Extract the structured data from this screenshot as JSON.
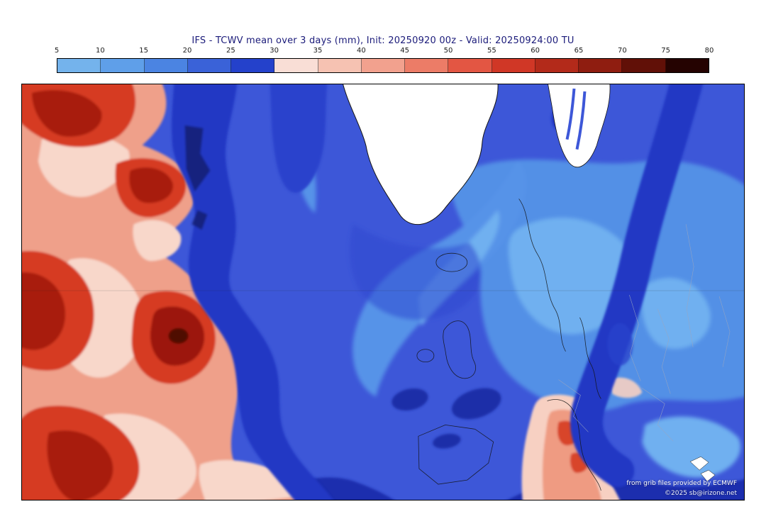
{
  "page": {
    "title": "IFS - TCWV mean over 3 days (mm), Init: 20250920 00z - Valid: 20250924:00 TU"
  },
  "colorbar": {
    "ticks": [
      "5",
      "10",
      "15",
      "20",
      "25",
      "30",
      "35",
      "40",
      "45",
      "50",
      "55",
      "60",
      "65",
      "70",
      "75",
      "80"
    ],
    "segments": [
      {
        "from": 5,
        "to": 10,
        "color": "#74b3ec"
      },
      {
        "from": 10,
        "to": 15,
        "color": "#5f9fe9"
      },
      {
        "from": 15,
        "to": 20,
        "color": "#4b84e2"
      },
      {
        "from": 20,
        "to": 25,
        "color": "#3a62d8"
      },
      {
        "from": 25,
        "to": 30,
        "color": "#2441cb"
      },
      {
        "from": 30,
        "to": 35,
        "color": "#f9ded6"
      },
      {
        "from": 35,
        "to": 40,
        "color": "#f6c2b2"
      },
      {
        "from": 40,
        "to": 45,
        "color": "#f2a18e"
      },
      {
        "from": 45,
        "to": 50,
        "color": "#ec7c67"
      },
      {
        "from": 50,
        "to": 55,
        "color": "#e35643"
      },
      {
        "from": 55,
        "to": 60,
        "color": "#d03726"
      },
      {
        "from": 60,
        "to": 65,
        "color": "#b32a1a"
      },
      {
        "from": 65,
        "to": 70,
        "color": "#8f1d10"
      },
      {
        "from": 70,
        "to": 75,
        "color": "#611007"
      },
      {
        "from": 75,
        "to": 80,
        "color": "#250301"
      }
    ]
  },
  "map": {
    "credits": {
      "line1": "from grib files provided by ECMWF",
      "line2": "©2025 sb@irizone.net"
    }
  },
  "chart_data": {
    "type": "heatmap",
    "title": "IFS - TCWV mean over 3 days (mm), Init: 20250920 00z - Valid: 20250924:00 TU",
    "model": "IFS",
    "variable": "Total column water vapour (TCWV) mean over 3 days",
    "units": "mm",
    "init": "20250920 00z",
    "valid": "20250924:00 TU",
    "scale_levels": [
      5,
      10,
      15,
      20,
      25,
      30,
      35,
      40,
      45,
      50,
      55,
      60,
      65,
      70,
      75,
      80
    ],
    "scale_colors": [
      "#74b3ec",
      "#5f9fe9",
      "#4b84e2",
      "#3a62d8",
      "#2441cb",
      "#f9ded6",
      "#f6c2b2",
      "#f2a18e",
      "#ec7c67",
      "#e35643",
      "#d03726",
      "#b32a1a",
      "#8f1d10",
      "#611007",
      "#250301"
    ],
    "legend_position": "top",
    "regions": [
      {
        "area": "western North Atlantic (left third of map)",
        "approx_tcwv_mm": "40-75"
      },
      {
        "area": "moist cyclonic core left-center",
        "approx_tcwv_mm": "70-80"
      },
      {
        "area": "Greenland",
        "approx_tcwv_mm": "<5 (white, below scale)"
      },
      {
        "area": "northeast Atlantic",
        "approx_tcwv_mm": "15-25"
      },
      {
        "area": "Scandinavia and eastern Europe",
        "approx_tcwv_mm": "10-20"
      },
      {
        "area": "central Mediterranean / Italy",
        "approx_tcwv_mm": "30-55"
      },
      {
        "area": "dark blue filaments (Atlantic bands, Gibraltar band)",
        "approx_tcwv_mm": "25-30"
      }
    ]
  }
}
